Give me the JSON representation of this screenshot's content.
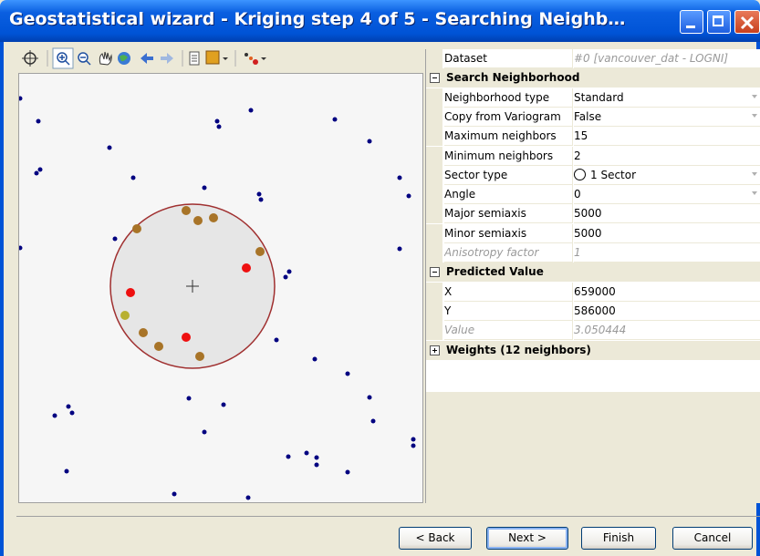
{
  "window": {
    "title": "Geostatistical wizard - Kriging step 4 of 5 - Searching Neighb…"
  },
  "property_grid": {
    "dataset": {
      "label": "Dataset",
      "value": "#0 [vancouver_dat - LOGNI]"
    },
    "sections": [
      {
        "title": "Search Neighborhood",
        "expanded": true,
        "rows": [
          {
            "label": "Neighborhood type",
            "value": "Standard",
            "dropdown": true
          },
          {
            "label": "Copy from Variogram",
            "value": "False",
            "dropdown": true
          },
          {
            "label": "Maximum neighbors",
            "value": "15"
          },
          {
            "label": "Minimum neighbors",
            "value": "2"
          },
          {
            "label": "Sector type",
            "value": "1 Sector",
            "dropdown": true,
            "icon": "circle"
          },
          {
            "label": "Angle",
            "value": "0",
            "dropdown": true
          },
          {
            "label": "Major semiaxis",
            "value": "5000"
          },
          {
            "label": "Minor semiaxis",
            "value": "5000"
          },
          {
            "label": "Anisotropy factor",
            "value": "1",
            "disabled": true
          }
        ]
      },
      {
        "title": "Predicted Value",
        "expanded": true,
        "rows": [
          {
            "label": "X",
            "value": "659000"
          },
          {
            "label": "Y",
            "value": "586000"
          },
          {
            "label": "Value",
            "value": "3.050444",
            "disabled": true
          }
        ]
      },
      {
        "title": "Weights (12 neighbors)",
        "expanded": false,
        "rows": []
      }
    ]
  },
  "buttons": [
    "< Back",
    "Next >",
    "Finish",
    "Cancel"
  ]
}
